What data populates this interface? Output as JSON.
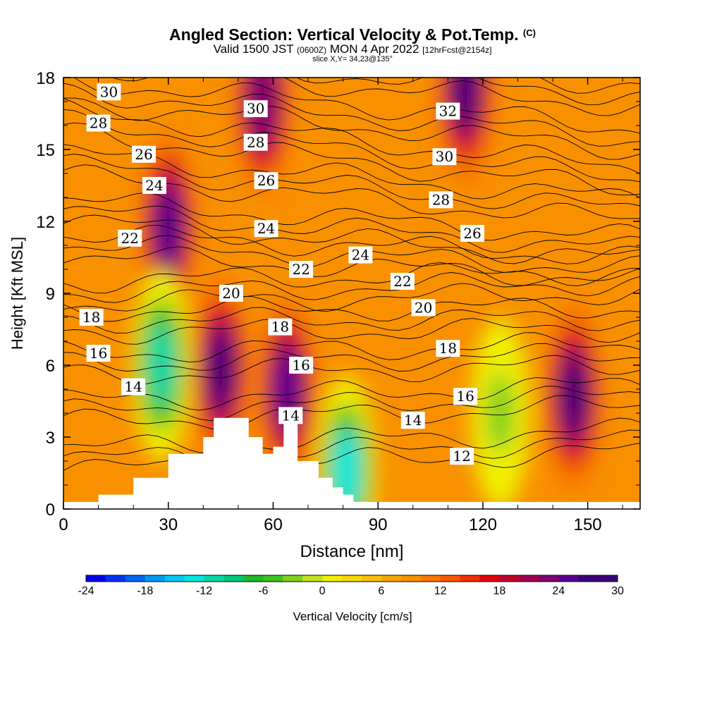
{
  "header": {
    "title": "Angled Section: Vertical Velocity & Pot.Temp.",
    "title_suffix": "(C)",
    "valid_prefix": "Valid 1500 JST",
    "utc": "(0600Z)",
    "valid_date": "MON 4 Apr 2022",
    "forecast": "[12hrFcst@2154z]",
    "slice": "slice X,Y= 34,23@135°"
  },
  "chart_data": {
    "type": "heatmap",
    "title": "Angled Section: Vertical Velocity & Pot.Temp. (C)",
    "xlabel": "Distance [nm]",
    "ylabel": "Height [Kft MSL]",
    "xlim": [
      0,
      165
    ],
    "ylim": [
      0,
      18
    ],
    "xticks": [
      "0",
      "30",
      "60",
      "90",
      "120",
      "150"
    ],
    "yticks": [
      "0",
      "3",
      "6",
      "9",
      "12",
      "15",
      "18"
    ],
    "colorbar": {
      "label": "Vertical Velocity [cm/s]",
      "min": -24,
      "max": 30,
      "step": 2,
      "tick_labels": [
        "-24",
        "-18",
        "-12",
        "-6",
        "0",
        "6",
        "12",
        "18",
        "24",
        "30"
      ],
      "colors": [
        "#0000ee",
        "#0033f0",
        "#0066f0",
        "#0099f0",
        "#00c8f0",
        "#00e8e0",
        "#00d8a8",
        "#00c878",
        "#20b830",
        "#40c020",
        "#80d020",
        "#c0e020",
        "#f0f000",
        "#f8d800",
        "#f8c000",
        "#f8a800",
        "#f89000",
        "#f87800",
        "#f85800",
        "#f03000",
        "#e00010",
        "#c00030",
        "#a00050",
        "#800070",
        "#5a0090",
        "#3c0078",
        "#3c0078"
      ]
    },
    "velocity_cores": [
      {
        "label": "updraft",
        "x": 30,
        "y": 11.8,
        "value": 24
      },
      {
        "label": "updraft",
        "x": 45,
        "y": 5.8,
        "value": 26
      },
      {
        "label": "updraft",
        "x": 64,
        "y": 5.0,
        "value": 24
      },
      {
        "label": "updraft",
        "x": 115,
        "y": 17.5,
        "value": 30
      },
      {
        "label": "updraft",
        "x": 146,
        "y": 4.7,
        "value": 26
      },
      {
        "label": "updraft",
        "x": 57,
        "y": 17.0,
        "value": 22
      },
      {
        "label": "downdraft",
        "x": 28,
        "y": 6.0,
        "value": -12
      },
      {
        "label": "downdraft",
        "x": 81,
        "y": 1.6,
        "value": -14
      },
      {
        "label": "downdraft",
        "x": 125,
        "y": 4.0,
        "value": -5
      }
    ],
    "terrain_profile": {
      "x": [
        10,
        10,
        20,
        20,
        30,
        30,
        40,
        40,
        43,
        43,
        47,
        47,
        53,
        53,
        57,
        57,
        60,
        60,
        63,
        63,
        67,
        67,
        73,
        73,
        77,
        77,
        80,
        80,
        83,
        83,
        87,
        87,
        90
      ],
      "height": [
        0,
        0.6,
        0.6,
        1.3,
        1.3,
        2.3,
        2.3,
        3.0,
        3.0,
        3.8,
        3.8,
        3.8,
        3.8,
        3.0,
        3.0,
        2.3,
        2.3,
        2.6,
        2.6,
        3.6,
        3.6,
        2.0,
        2.0,
        1.3,
        1.3,
        0.9,
        0.9,
        0.6,
        0.6,
        0.3,
        0.3,
        0,
        0
      ]
    },
    "isentropes_C": [
      12,
      14,
      16,
      18,
      20,
      22,
      24,
      26,
      28,
      30,
      32
    ],
    "isentrope_labels": [
      {
        "text": "30",
        "x": 13,
        "y": 17.4
      },
      {
        "text": "28",
        "x": 10,
        "y": 16.1
      },
      {
        "text": "26",
        "x": 23,
        "y": 14.8
      },
      {
        "text": "24",
        "x": 26,
        "y": 13.5
      },
      {
        "text": "22",
        "x": 19,
        "y": 11.3
      },
      {
        "text": "18",
        "x": 8,
        "y": 8.0
      },
      {
        "text": "16",
        "x": 10,
        "y": 6.5
      },
      {
        "text": "14",
        "x": 20,
        "y": 5.1
      },
      {
        "text": "30",
        "x": 55,
        "y": 16.7
      },
      {
        "text": "28",
        "x": 55,
        "y": 15.3
      },
      {
        "text": "26",
        "x": 58,
        "y": 13.7
      },
      {
        "text": "24",
        "x": 58,
        "y": 11.7
      },
      {
        "text": "22",
        "x": 68,
        "y": 10.0
      },
      {
        "text": "20",
        "x": 48,
        "y": 9.0
      },
      {
        "text": "18",
        "x": 62,
        "y": 7.6
      },
      {
        "text": "16",
        "x": 68,
        "y": 6.0
      },
      {
        "text": "14",
        "x": 65,
        "y": 3.9
      },
      {
        "text": "32",
        "x": 110,
        "y": 16.6
      },
      {
        "text": "30",
        "x": 109,
        "y": 14.7
      },
      {
        "text": "28",
        "x": 108,
        "y": 12.9
      },
      {
        "text": "26",
        "x": 117,
        "y": 11.5
      },
      {
        "text": "24",
        "x": 85,
        "y": 10.6
      },
      {
        "text": "22",
        "x": 97,
        "y": 9.5
      },
      {
        "text": "20",
        "x": 103,
        "y": 8.4
      },
      {
        "text": "18",
        "x": 110,
        "y": 6.7
      },
      {
        "text": "16",
        "x": 115,
        "y": 4.7
      },
      {
        "text": "14",
        "x": 100,
        "y": 3.7
      },
      {
        "text": "12",
        "x": 114,
        "y": 2.2
      }
    ]
  }
}
